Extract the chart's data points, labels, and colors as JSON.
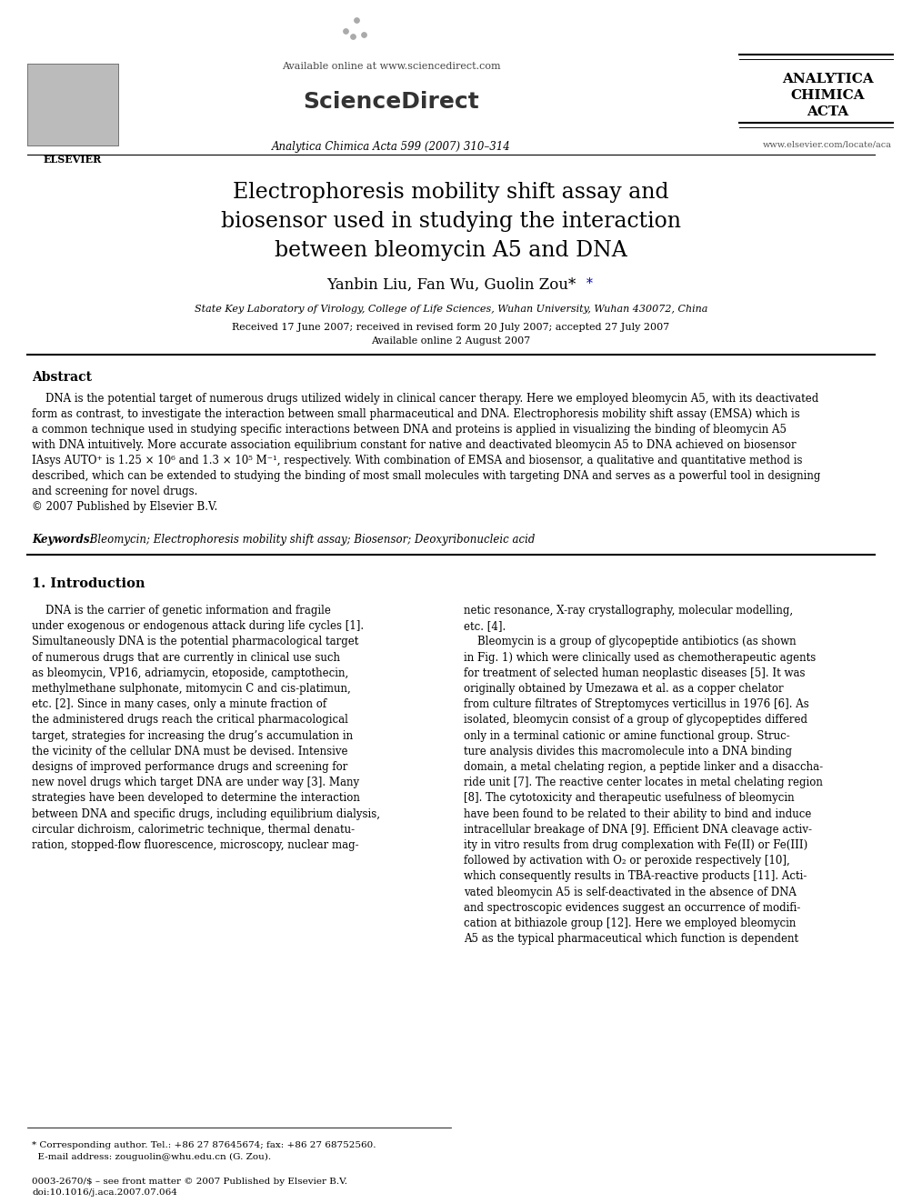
{
  "bg_color": "#ffffff",
  "header": {
    "available_online": "Available online at www.sciencedirect.com",
    "sciencedirect": "ScienceDirect",
    "journal_line": "Analytica Chimica Acta 599 (2007) 310–314",
    "journal_name_lines": [
      "ANALYTICA",
      "CHIMICA",
      "ACTA"
    ],
    "journal_url": "www.elsevier.com/locate/aca",
    "elsevier_label": "ELSEVIER"
  },
  "title": "Electrophoresis mobility shift assay and\nbiosensor used in studying the interaction\nbetween bleomycin A5 and DNA",
  "authors": "Yanbin Liu, Fan Wu, Guolin Zou*",
  "affiliation": "State Key Laboratory of Virology, College of Life Sciences, Wuhan University, Wuhan 430072, China",
  "dates": "Received 17 June 2007; received in revised form 20 July 2007; accepted 27 July 2007",
  "available": "Available online 2 August 2007",
  "abstract_title": "Abstract",
  "abstract_text": "    DNA is the potential target of numerous drugs utilized widely in clinical cancer therapy. Here we employed bleomycin A5, with its deactivated\nform as contrast, to investigate the interaction between small pharmaceutical and DNA. Electrophoresis mobility shift assay (EMSA) which is\na common technique used in studying specific interactions between DNA and proteins is applied in visualizing the binding of bleomycin A5\nwith DNA intuitively. More accurate association equilibrium constant for native and deactivated bleomycin A5 to DNA achieved on biosensor\nIAsys AUTO⁺ is 1.25 × 10⁶ and 1.3 × 10⁵ M⁻¹, respectively. With combination of EMSA and biosensor, a qualitative and quantitative method is\ndescribed, which can be extended to studying the binding of most small molecules with targeting DNA and serves as a powerful tool in designing\nand screening for novel drugs.\n© 2007 Published by Elsevier B.V.",
  "keywords_label": "Keywords:",
  "keywords_text": " Bleomycin; Electrophoresis mobility shift assay; Biosensor; Deoxyribonucleic acid",
  "section1_title": "1. Introduction",
  "intro_col1": "    DNA is the carrier of genetic information and fragile\nunder exogenous or endogenous attack during life cycles [1].\nSimultaneously DNA is the potential pharmacological target\nof numerous drugs that are currently in clinical use such\nas bleomycin, VP16, adriamycin, etoposide, camptothecin,\nmethylmethane sulphonate, mitomycin C and cis-platimun,\netc. [2]. Since in many cases, only a minute fraction of\nthe administered drugs reach the critical pharmacological\ntarget, strategies for increasing the drug’s accumulation in\nthe vicinity of the cellular DNA must be devised. Intensive\ndesigns of improved performance drugs and screening for\nnew novel drugs which target DNA are under way [3]. Many\nstrategies have been developed to determine the interaction\nbetween DNA and specific drugs, including equilibrium dialysis,\ncircular dichroism, calorimetric technique, thermal denatu-\nration, stopped-flow fluorescence, microscopy, nuclear mag-",
  "intro_col2": "netic resonance, X-ray crystallography, molecular modelling,\netc. [4].\n    Bleomycin is a group of glycopeptide antibiotics (as shown\nin Fig. 1) which were clinically used as chemotherapeutic agents\nfor treatment of selected human neoplastic diseases [5]. It was\noriginally obtained by Umezawa et al. as a copper chelator\nfrom culture filtrates of Streptomyces verticillus in 1976 [6]. As\nisolated, bleomycin consist of a group of glycopeptides differed\nonly in a terminal cationic or amine functional group. Struc-\nture analysis divides this macromolecule into a DNA binding\ndomain, a metal chelating region, a peptide linker and a disaccha-\nride unit [7]. The reactive center locates in metal chelating region\n[8]. The cytotoxicity and therapeutic usefulness of bleomycin\nhave been found to be related to their ability to bind and induce\nintracellular breakage of DNA [9]. Efficient DNA cleavage activ-\nity in vitro results from drug complexation with Fe(II) or Fe(III)\nfollowed by activation with O₂ or peroxide respectively [10],\nwhich consequently results in TBA-reactive products [11]. Acti-\nvated bleomycin A5 is self-deactivated in the absence of DNA\nand spectroscopic evidences suggest an occurrence of modifi-\ncation at bithiazole group [12]. Here we employed bleomycin\nA5 as the typical pharmaceutical which function is dependent",
  "footer_left": "* Corresponding author. Tel.: +86 27 87645674; fax: +86 27 68752560.\n  E-mail address: zouguolin@whu.edu.cn (G. Zou).",
  "footer_bottom": "0003-2670/$ – see front matter © 2007 Published by Elsevier B.V.\ndoi:10.1016/j.aca.2007.07.064"
}
